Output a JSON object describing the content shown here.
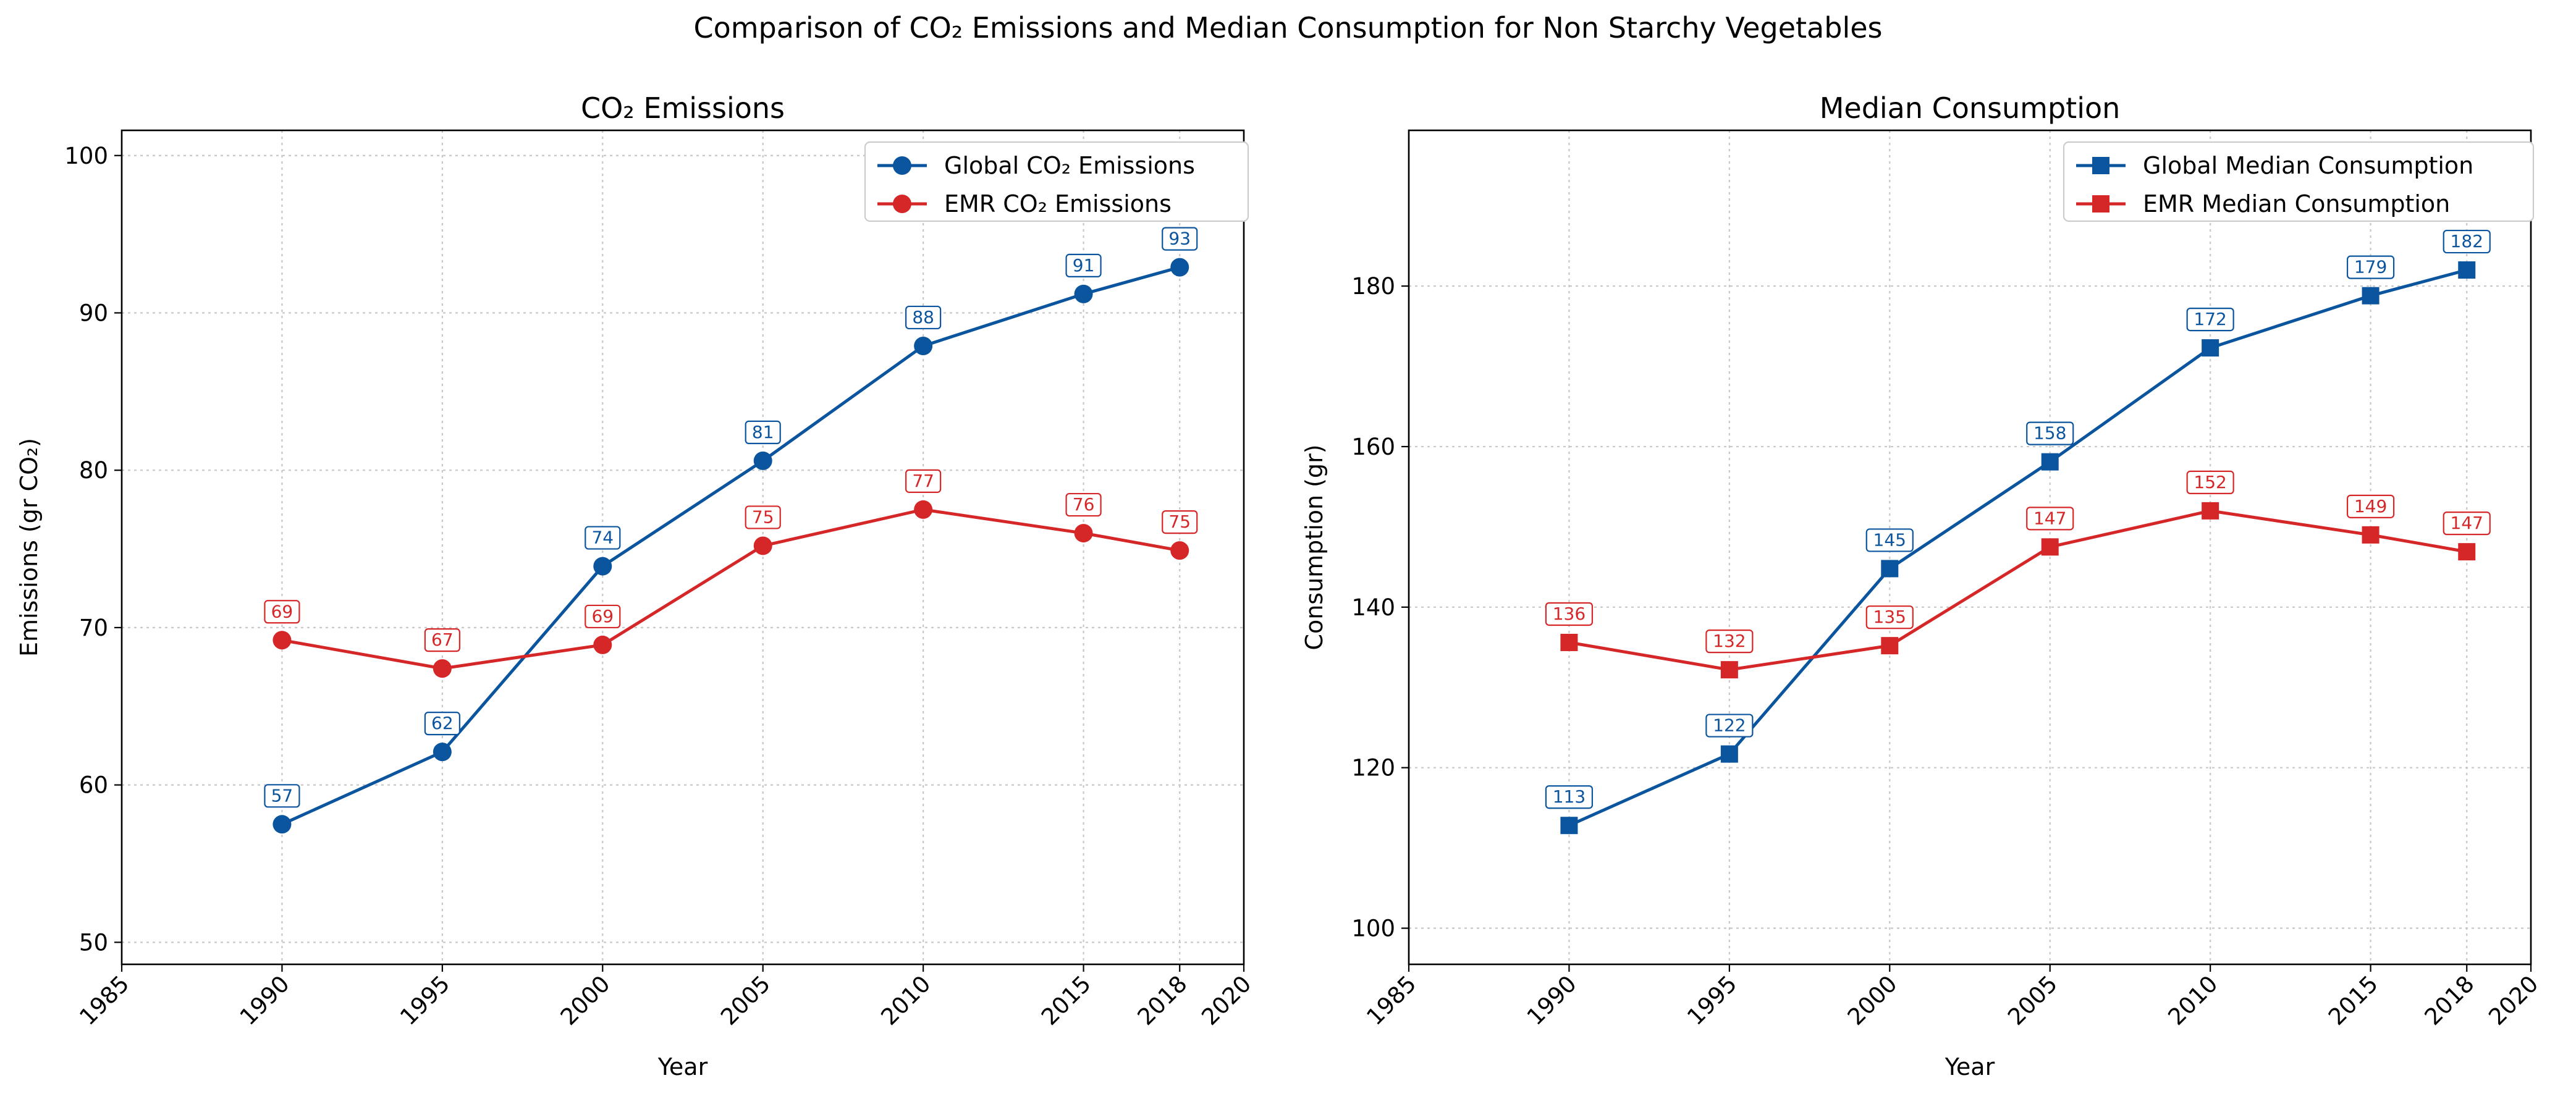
{
  "figure": {
    "suptitle": "Comparison of CO₂ Emissions and Median Consumption for Non Starchy Vegetables"
  },
  "colors": {
    "global": "#0b559f",
    "emr": "#d62728",
    "grid": "#c8c8c8"
  },
  "chart_data": [
    {
      "type": "line",
      "title": "CO₂ Emissions",
      "xlabel": "Year",
      "ylabel": "Emissions (gr CO₂)",
      "xlim": [
        1985,
        2020
      ],
      "ylim": [
        48.6,
        101.6
      ],
      "xticks": [
        "1985",
        "1990",
        "1995",
        "2000",
        "2005",
        "2010",
        "2015",
        "2018",
        "2020"
      ],
      "yticks": [
        "50",
        "60",
        "70",
        "80",
        "90",
        "100"
      ],
      "grid": true,
      "legend_position": "top-right",
      "marker": "circle",
      "x": [
        1990,
        1995,
        2000,
        2005,
        2010,
        2015,
        2018
      ],
      "series": [
        {
          "name": "Global CO₂ Emissions",
          "color": "#0b559f",
          "values": [
            57.5,
            62.1,
            73.9,
            80.6,
            87.9,
            91.2,
            92.9
          ],
          "labels": [
            "57",
            "62",
            "74",
            "81",
            "88",
            "91",
            "93"
          ]
        },
        {
          "name": "EMR CO₂ Emissions",
          "color": "#d62728",
          "values": [
            69.2,
            67.4,
            68.9,
            75.2,
            77.5,
            76.0,
            74.9
          ],
          "labels": [
            "69",
            "67",
            "69",
            "75",
            "77",
            "76",
            "75"
          ]
        }
      ]
    },
    {
      "type": "line",
      "title": "Median Consumption",
      "xlabel": "Year",
      "ylabel": "Consumption (gr)",
      "xlim": [
        1985,
        2020
      ],
      "ylim": [
        95.5,
        199.4
      ],
      "xticks": [
        "1985",
        "1990",
        "1995",
        "2000",
        "2005",
        "2010",
        "2015",
        "2018",
        "2020"
      ],
      "yticks": [
        "100",
        "120",
        "140",
        "160",
        "180"
      ],
      "grid": true,
      "legend_position": "top-right",
      "marker": "square",
      "x": [
        1990,
        1995,
        2000,
        2005,
        2010,
        2015,
        2018
      ],
      "series": [
        {
          "name": "Global Median Consumption",
          "color": "#0b559f",
          "values": [
            112.8,
            121.7,
            144.8,
            158.1,
            172.3,
            178.8,
            182.0
          ],
          "labels": [
            "113",
            "122",
            "145",
            "158",
            "172",
            "179",
            "182"
          ]
        },
        {
          "name": "EMR Median Consumption",
          "color": "#d62728",
          "values": [
            135.6,
            132.2,
            135.2,
            147.5,
            152.0,
            149.0,
            146.9
          ],
          "labels": [
            "136",
            "132",
            "135",
            "147",
            "152",
            "149",
            "147"
          ]
        }
      ]
    }
  ]
}
